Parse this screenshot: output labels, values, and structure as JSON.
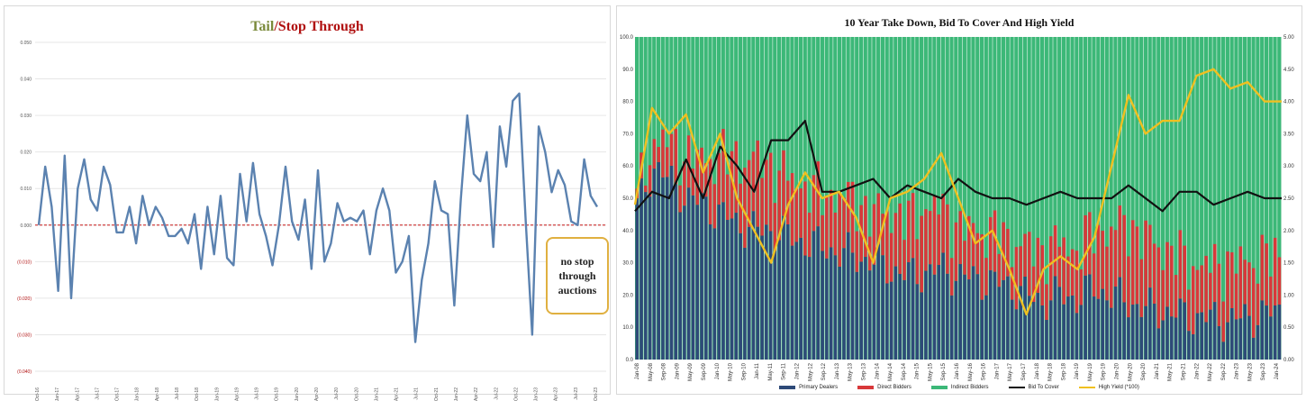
{
  "chart_data": [
    {
      "type": "line",
      "title": {
        "part1": "Tail",
        "separator": "/",
        "part2": "Stop Through"
      },
      "ylim": [
        -0.04,
        0.05
      ],
      "y_ticks": [
        "0.050",
        "0.040",
        "0.030",
        "0.020",
        "0.010",
        "0.000",
        "(0.010)",
        "(0.020)",
        "(0.030)",
        "(0.040)"
      ],
      "x_tick_labels": [
        "Oct-16",
        "Jan-17",
        "Apr-17",
        "Jul-17",
        "Oct-17",
        "Jan-18",
        "Apr-18",
        "Jul-18",
        "Oct-18",
        "Jan-19",
        "Apr-19",
        "Jul-19",
        "Oct-19",
        "Jan-20",
        "Apr-20",
        "Jul-20",
        "Oct-20",
        "Jan-21",
        "Apr-21",
        "Jul-21",
        "Oct-21",
        "Jan-22",
        "Apr-22",
        "Jul-22",
        "Oct-22",
        "Jan-23",
        "Apr-23",
        "Jul-23",
        "Oct-23"
      ],
      "reference_line": 0,
      "annotation": "no stop through auctions",
      "colors": {
        "line": "#5b82b0",
        "zero_line": "#d04040"
      },
      "values": [
        0,
        0.016,
        0.005,
        -0.018,
        0.019,
        -0.02,
        0.01,
        0.018,
        0.007,
        0.004,
        0.016,
        0.011,
        -0.002,
        -0.002,
        0.005,
        -0.005,
        0.008,
        0,
        0.005,
        0.002,
        -0.003,
        -0.003,
        -0.001,
        -0.005,
        0.003,
        -0.012,
        0.005,
        -0.008,
        0.008,
        -0.009,
        -0.011,
        0.014,
        0.001,
        0.017,
        0.003,
        -0.003,
        -0.011,
        0,
        0.016,
        0.001,
        -0.004,
        0.007,
        -0.012,
        0.015,
        -0.01,
        -0.005,
        0.006,
        0.001,
        0.002,
        0.001,
        0.004,
        -0.008,
        0.004,
        0.01,
        0.004,
        -0.013,
        -0.01,
        -0.003,
        -0.032,
        -0.015,
        -0.005,
        0.012,
        0.004,
        0.003,
        -0.022,
        0.007,
        0.03,
        0.014,
        0.012,
        0.02,
        -0.006,
        0.027,
        0.016,
        0.034,
        0.036,
        0.001,
        -0.03,
        0.027,
        0.02,
        0.009,
        0.015,
        0.011,
        0.001,
        0,
        0.018,
        0.008,
        0.005
      ]
    },
    {
      "type": "bar+line",
      "stacked": true,
      "title": "10 Year Take Down, Bid To Cover And High Yield",
      "ylim_left": [
        0,
        100
      ],
      "ylim_right": [
        0,
        5
      ],
      "y_ticks_left": [
        "100.0",
        "90.0",
        "80.0",
        "70.0",
        "60.0",
        "50.0",
        "40.0",
        "30.0",
        "20.0",
        "10.0",
        "0.0"
      ],
      "y_ticks_right": [
        "5.00",
        "4.50",
        "4.00",
        "3.50",
        "3.00",
        "2.50",
        "2.00",
        "1.50",
        "1.00",
        "0.50",
        "0.00"
      ],
      "x_tick_labels": [
        "Jan-08",
        "May-08",
        "Sep-08",
        "Jan-09",
        "May-09",
        "Sep-09",
        "Jan-10",
        "May-10",
        "Sep-10",
        "Jan-11",
        "May-11",
        "Sep-11",
        "Jan-12",
        "May-12",
        "Sep-12",
        "Jan-13",
        "May-13",
        "Sep-13",
        "Jan-14",
        "May-14",
        "Sep-14",
        "Jan-15",
        "May-15",
        "Sep-15",
        "Jan-16",
        "May-16",
        "Sep-16",
        "Jan-17",
        "May-17",
        "Sep-17",
        "Jan-18",
        "May-18",
        "Sep-18",
        "Jan-19",
        "May-19",
        "Sep-19",
        "Jan-20",
        "May-20",
        "Sep-20",
        "Jan-21",
        "May-21",
        "Sep-21",
        "Jan-22",
        "May-22",
        "Sep-22",
        "Jan-23",
        "May-23",
        "Sep-23",
        "Jan-24"
      ],
      "legend": [
        {
          "name": "Primary Dealers",
          "color": "#2e4a78",
          "kind": "bar"
        },
        {
          "name": "Direct Bidders",
          "color": "#d8383a",
          "kind": "bar"
        },
        {
          "name": "Indirect Bidders",
          "color": "#3cb878",
          "kind": "bar"
        },
        {
          "name": "Bid To Cover",
          "color": "#111111",
          "kind": "line"
        },
        {
          "name": "High Yield (*100)",
          "color": "#f0c020",
          "kind": "line"
        }
      ],
      "series": {
        "primary_dealers": [
          47,
          60,
          55,
          50,
          48,
          45,
          42,
          40,
          40,
          38,
          36,
          35,
          33,
          32,
          30,
          28,
          26,
          27,
          28,
          26,
          25,
          24,
          23,
          20,
          18,
          20,
          19,
          22,
          20,
          18,
          16,
          15,
          14,
          13,
          13,
          12,
          13,
          14,
          15
        ],
        "direct_bidders": [
          3,
          8,
          12,
          13,
          14,
          18,
          20,
          22,
          20,
          18,
          18,
          16,
          18,
          17,
          15,
          18,
          17,
          20,
          19,
          15,
          15,
          16,
          14,
          15,
          16,
          16,
          15,
          18,
          20,
          24,
          22,
          20,
          18,
          16,
          16,
          18,
          17,
          18,
          16
        ],
        "bid_to_cover": [
          2.3,
          2.6,
          2.5,
          3.1,
          2.5,
          3.3,
          3,
          2.6,
          3.4,
          3.4,
          3.7,
          2.6,
          2.6,
          2.7,
          2.8,
          2.5,
          2.7,
          2.6,
          2.5,
          2.8,
          2.6,
          2.5,
          2.5,
          2.4,
          2.5,
          2.6,
          2.5,
          2.5,
          2.5,
          2.7,
          2.5,
          2.3,
          2.6,
          2.6,
          2.4,
          2.5,
          2.6,
          2.5,
          2.5
        ],
        "high_yield": [
          2.4,
          3.9,
          3.5,
          3.8,
          2.9,
          3.5,
          2.5,
          2,
          1.5,
          2.4,
          2.9,
          2.5,
          2.6,
          2.2,
          1.5,
          2.5,
          2.6,
          2.8,
          3.2,
          2.5,
          1.8,
          2,
          1.4,
          0.7,
          1.4,
          1.6,
          1.4,
          1.9,
          3,
          4.1,
          3.5,
          3.7,
          3.7,
          4.4,
          4.5,
          4.2,
          4.3,
          4,
          4
        ]
      },
      "colors": {
        "indirect_background": "#3cb878"
      }
    }
  ]
}
